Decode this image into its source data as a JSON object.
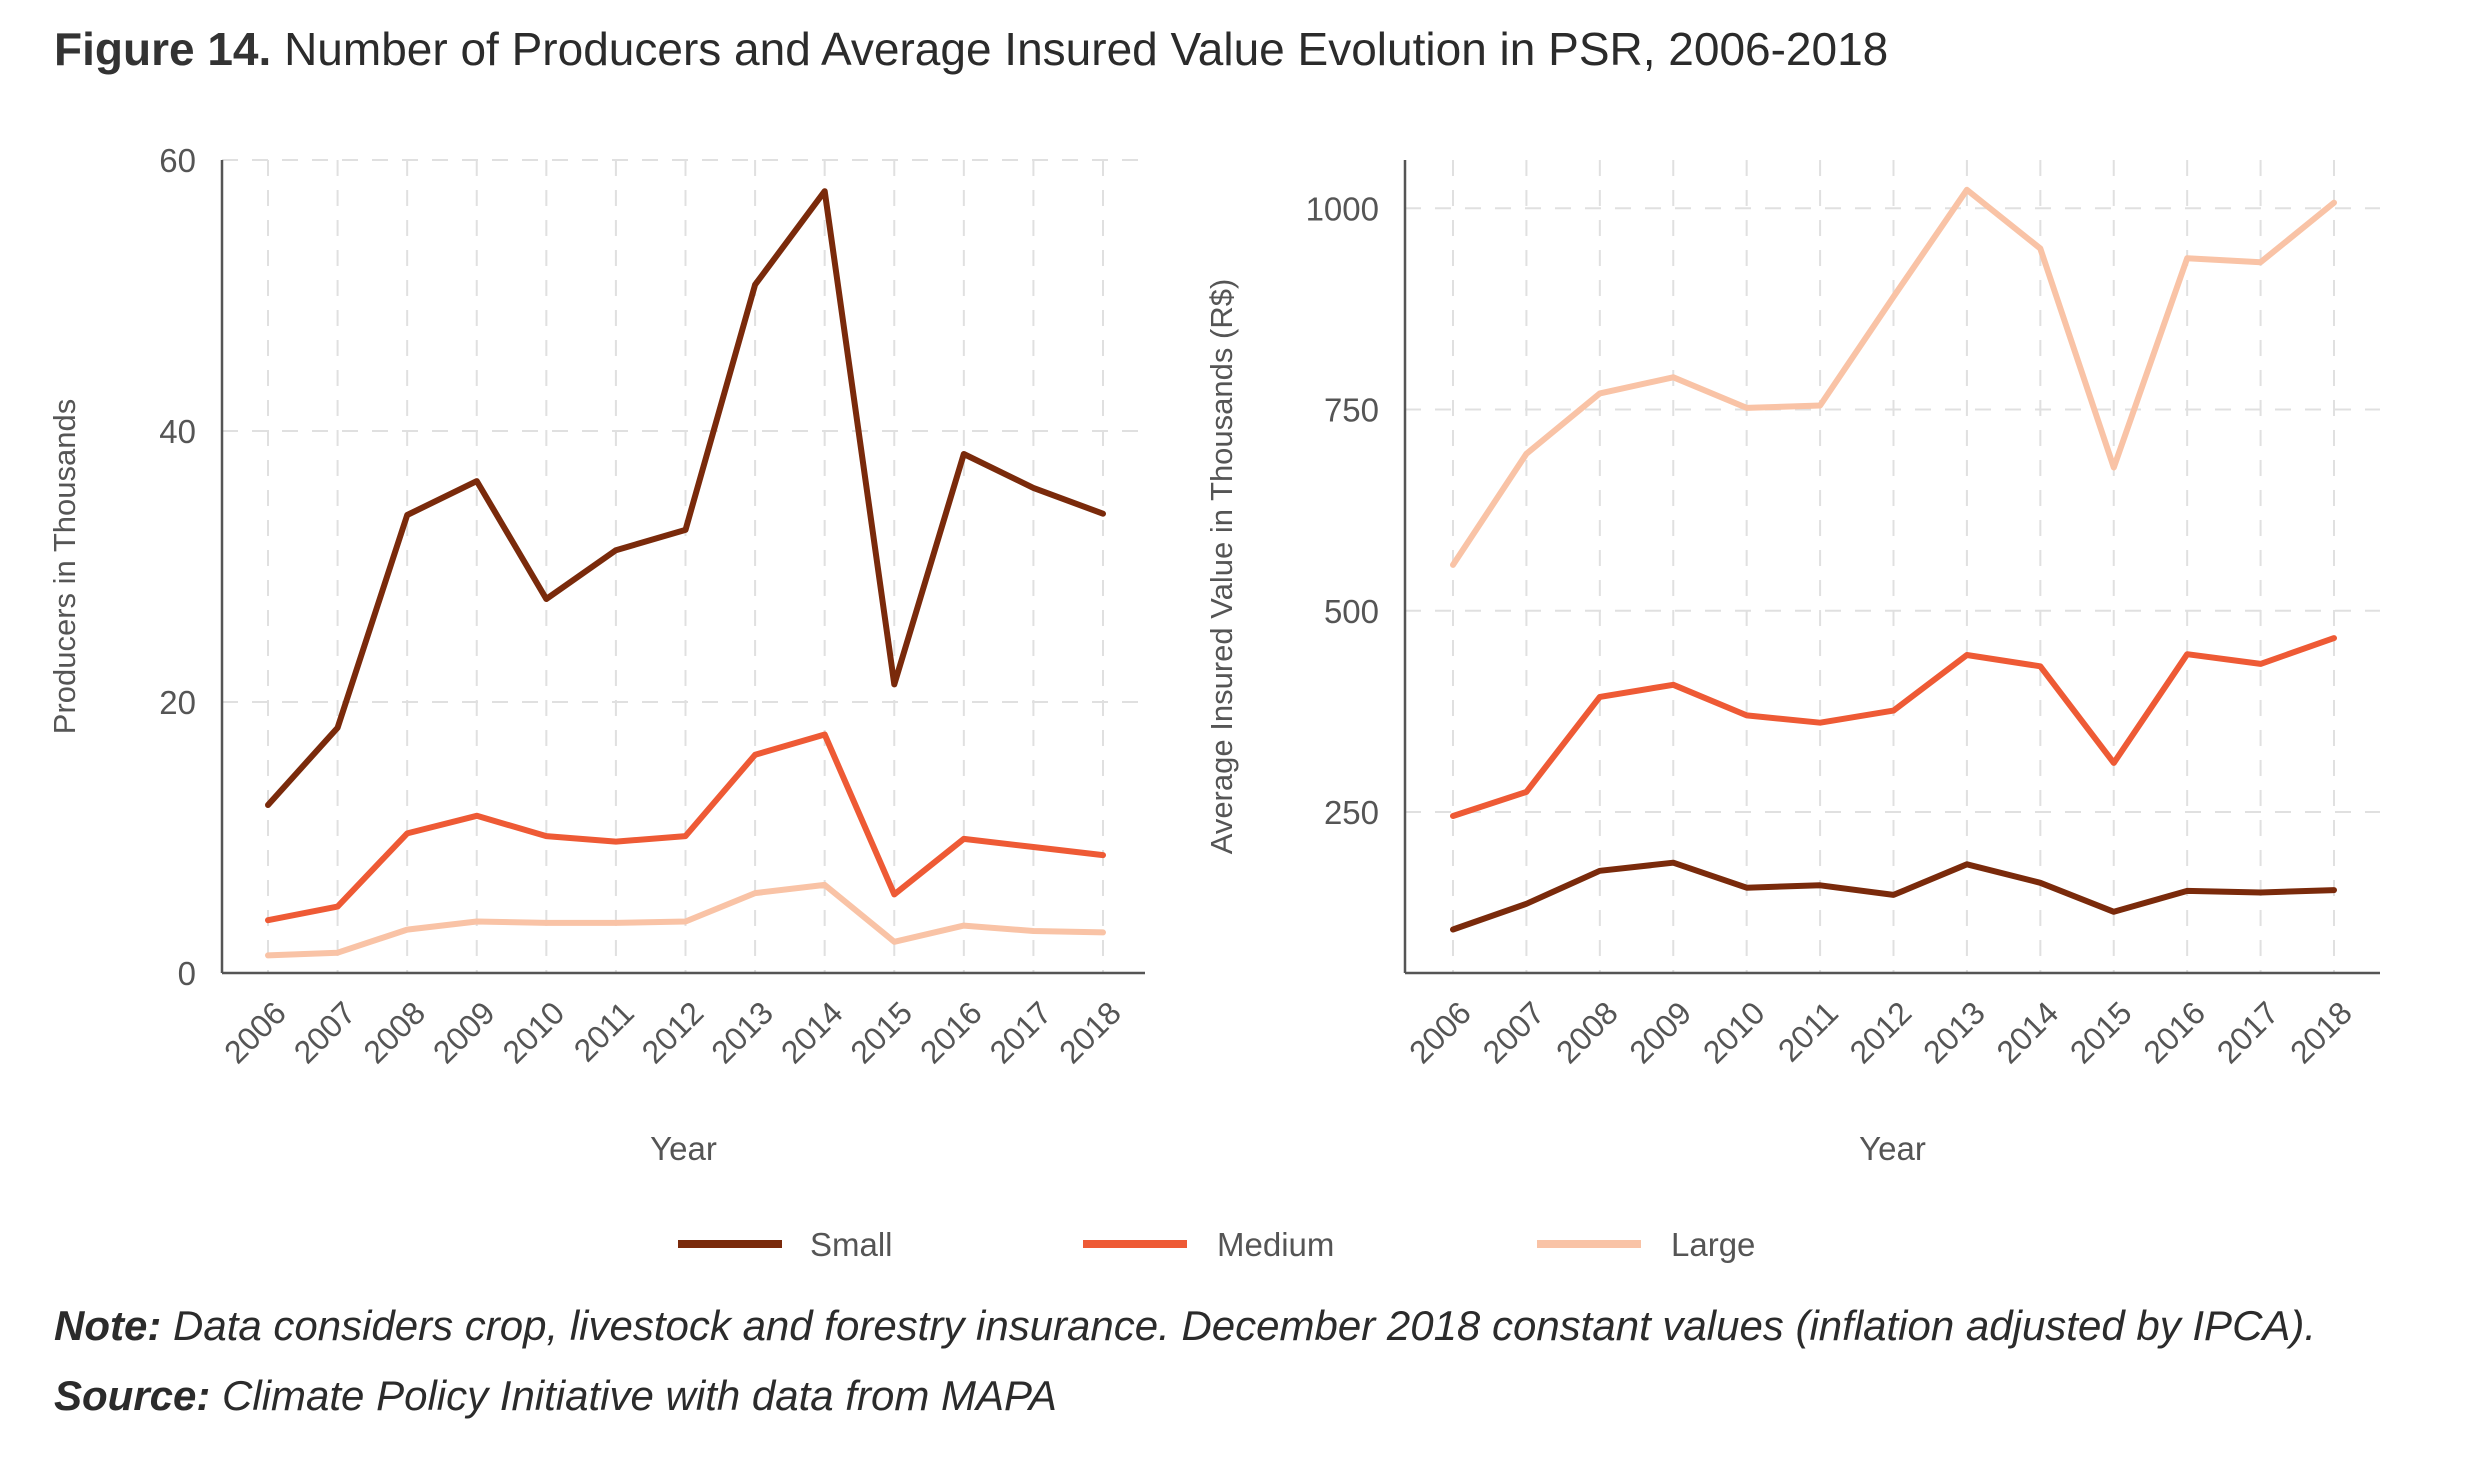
{
  "title": {
    "prefix": "Figure 14.",
    "text": "Number of Producers and Average Insured Value Evolution in PSR, 2006-2018"
  },
  "colors": {
    "Small": "#7a2a0b",
    "Medium": "#ee5a35",
    "Large": "#f9c3a6",
    "axis": "#555555",
    "grid": "#e0e0e0",
    "text": "#555555"
  },
  "legend": {
    "placement": "bottom",
    "items": [
      "Small",
      "Medium",
      "Large"
    ]
  },
  "chart_data": [
    {
      "type": "line",
      "xlabel": "Year",
      "ylabel": "Producers in Thousands",
      "ylim": [
        0,
        60
      ],
      "yticks": [
        0,
        20,
        40,
        60
      ],
      "grid": true,
      "x": [
        "2006",
        "2007",
        "2008",
        "2009",
        "2010",
        "2011",
        "2012",
        "2013",
        "2014",
        "2015",
        "2016",
        "2017",
        "2018"
      ],
      "series": [
        {
          "name": "Small",
          "values": [
            12.4,
            18.1,
            33.8,
            36.3,
            27.6,
            31.2,
            32.7,
            50.8,
            57.7,
            21.3,
            38.3,
            35.8,
            33.9
          ]
        },
        {
          "name": "Medium",
          "values": [
            3.9,
            4.9,
            10.3,
            11.6,
            10.1,
            9.7,
            10.1,
            16.1,
            17.6,
            5.8,
            9.9,
            9.3,
            8.7
          ]
        },
        {
          "name": "Large",
          "values": [
            1.3,
            1.5,
            3.2,
            3.8,
            3.7,
            3.7,
            3.8,
            5.9,
            6.5,
            2.3,
            3.5,
            3.1,
            3.0
          ]
        }
      ]
    },
    {
      "type": "line",
      "xlabel": "Year",
      "ylabel": "Average Insured Value in Thousands (R$)",
      "ylim": [
        50,
        1060
      ],
      "yticks": [
        250,
        500,
        750,
        1000
      ],
      "grid": true,
      "x": [
        "2006",
        "2007",
        "2008",
        "2009",
        "2010",
        "2011",
        "2012",
        "2013",
        "2014",
        "2015",
        "2016",
        "2017",
        "2018"
      ],
      "series": [
        {
          "name": "Small",
          "values": [
            104,
            136,
            177,
            187,
            156,
            159,
            147,
            185,
            162,
            126,
            152,
            150,
            153
          ]
        },
        {
          "name": "Medium",
          "values": [
            245,
            275,
            393,
            408,
            370,
            361,
            376,
            445,
            431,
            311,
            446,
            434,
            466
          ]
        },
        {
          "name": "Large",
          "values": [
            557,
            695,
            770,
            790,
            752,
            755,
            890,
            1023,
            950,
            678,
            938,
            933,
            1007
          ]
        }
      ]
    }
  ],
  "note": {
    "label": "Note:",
    "text": "Data considers crop, livestock and forestry insurance. December 2018 constant values (inflation adjusted by IPCA)."
  },
  "source": {
    "label": "Source:",
    "text": "Climate Policy Initiative with data from MAPA"
  }
}
